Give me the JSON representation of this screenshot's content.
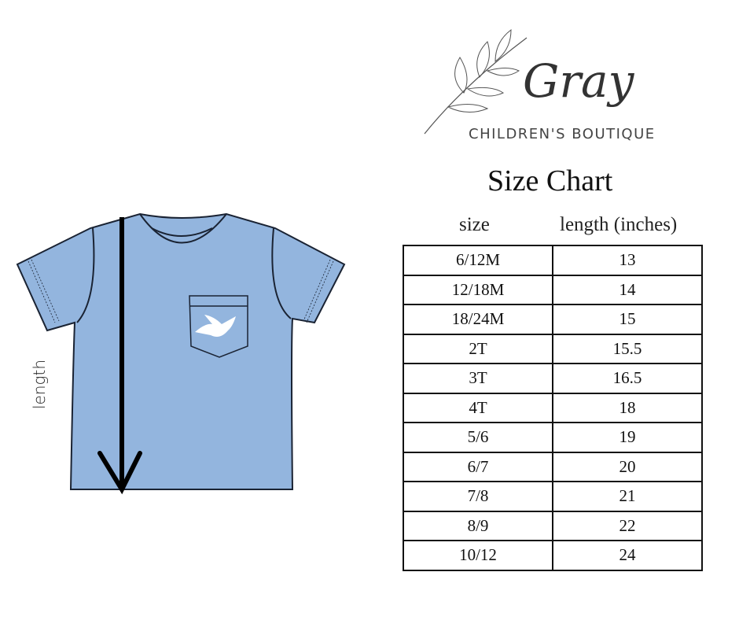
{
  "brand": {
    "name": "Gray",
    "subtitle": "CHILDREN'S BOUTIQUE"
  },
  "diagram": {
    "measure_label": "length",
    "shirt_color": "#93b5de"
  },
  "size_chart": {
    "title": "Size Chart",
    "headers": [
      "size",
      "length (inches)"
    ],
    "rows": [
      [
        "6/12M",
        "13"
      ],
      [
        "12/18M",
        "14"
      ],
      [
        "18/24M",
        "15"
      ],
      [
        "2T",
        "15.5"
      ],
      [
        "3T",
        "16.5"
      ],
      [
        "4T",
        "18"
      ],
      [
        "5/6",
        "19"
      ],
      [
        "6/7",
        "20"
      ],
      [
        "7/8",
        "21"
      ],
      [
        "8/9",
        "22"
      ],
      [
        "10/12",
        "24"
      ]
    ]
  }
}
